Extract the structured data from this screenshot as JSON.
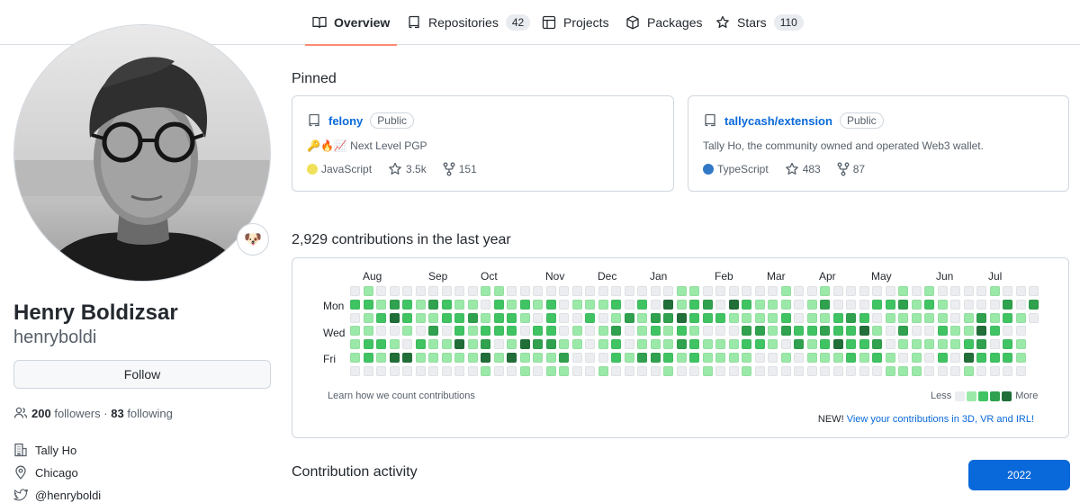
{
  "nav": {
    "tabs": [
      {
        "label": "Overview",
        "count": null,
        "icon": "book-icon"
      },
      {
        "label": "Repositories",
        "count": "42",
        "icon": "repo-icon"
      },
      {
        "label": "Projects",
        "count": null,
        "icon": "table-icon"
      },
      {
        "label": "Packages",
        "count": null,
        "icon": "package-icon"
      },
      {
        "label": "Stars",
        "count": "110",
        "icon": "star-icon"
      }
    ],
    "active": "Overview",
    "active_color": "#fd8c73"
  },
  "profile": {
    "name": "Henry Boldizsar",
    "username": "henryboldi",
    "status_emoji": "🐶",
    "follow_label": "Follow",
    "followers_count": "200",
    "followers_label": "followers",
    "separator": "·",
    "following_count": "83",
    "following_label": "following",
    "company": "Tally Ho",
    "location": "Chicago",
    "twitter": "@henryboldi"
  },
  "pinned": {
    "title": "Pinned",
    "repos": [
      {
        "name": "felony",
        "visibility": "Public",
        "description": "🔑🔥📈 Next Level PGP",
        "language": "JavaScript",
        "language_color": "#f1e05a",
        "stars": "3.5k",
        "forks": "151"
      },
      {
        "name": "tallycash/extension",
        "visibility": "Public",
        "description": "Tally Ho, the community owned and operated Web3 wallet.",
        "language": "TypeScript",
        "language_color": "#3178c6",
        "stars": "483",
        "forks": "87"
      }
    ]
  },
  "contributions": {
    "title": "2,929 contributions in the last year",
    "months": [
      "Aug",
      "Sep",
      "Oct",
      "Nov",
      "Dec",
      "Jan",
      "Feb",
      "Mar",
      "Apr",
      "May",
      "Jun",
      "Jul"
    ],
    "days": [
      "Mon",
      "Wed",
      "Fri"
    ],
    "learn_label": "Learn how we count contributions",
    "legend_less": "Less",
    "legend_more": "More",
    "level_colors": [
      "#ebedf0",
      "#9be9a8",
      "#40c463",
      "#30a14e",
      "#216e39"
    ],
    "new_prefix": "NEW!",
    "new_link": "View your contributions in 3D, VR and IRL!"
  },
  "activity": {
    "title": "Contribution activity",
    "year": "2022"
  }
}
